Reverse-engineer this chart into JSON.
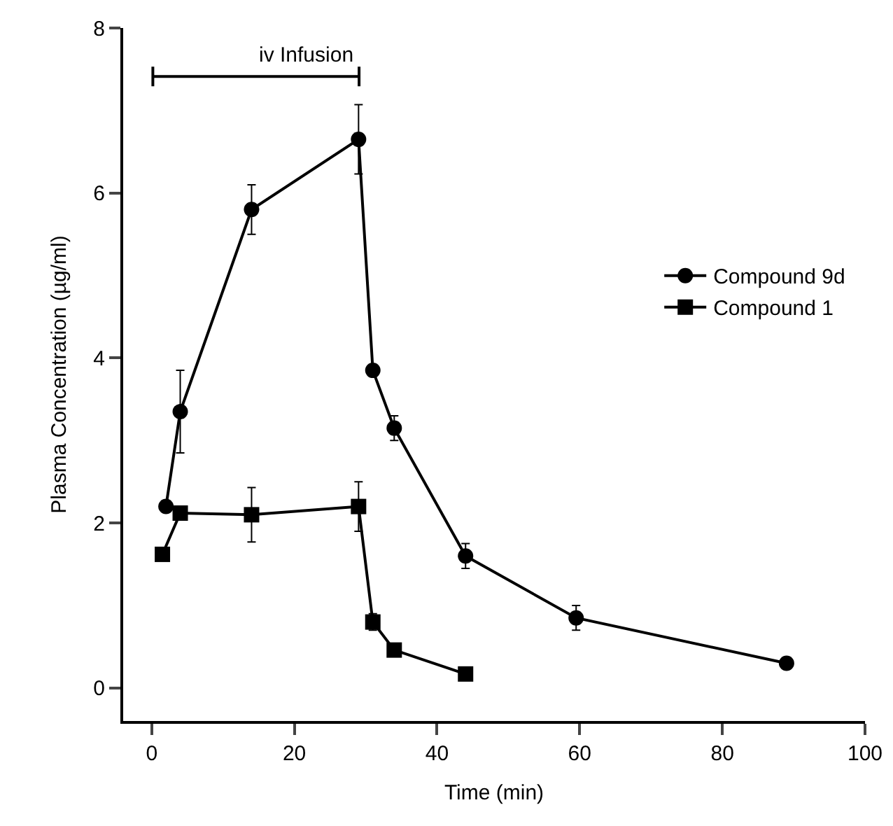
{
  "chart_data": {
    "type": "line",
    "xlabel": "Time (min)",
    "ylabel": "Plasma Concentration (µg/ml)",
    "xlim": [
      -4,
      100
    ],
    "xticks": [
      0,
      20,
      40,
      60,
      80,
      100
    ],
    "ylim": [
      -0.4,
      8
    ],
    "yticks": [
      0,
      2,
      4,
      6,
      8
    ],
    "grid": false,
    "legend": "right",
    "annotations": [
      "iv Infusion"
    ],
    "series": [
      {
        "name": "Compound 9d",
        "color": "#000000",
        "marker": "circle",
        "x": [
          2,
          4,
          14,
          29,
          31,
          34,
          44,
          59.5,
          89
        ],
        "values": [
          2.2,
          3.35,
          5.8,
          6.65,
          3.85,
          3.15,
          1.6,
          0.85,
          0.3
        ],
        "errors": [
          null,
          0.5,
          0.3,
          0.42,
          null,
          0.15,
          0.15,
          0.15,
          null
        ]
      },
      {
        "name": "Compound 1",
        "color": "#000000",
        "marker": "square",
        "x": [
          1.5,
          4,
          14,
          29,
          31,
          34,
          44
        ],
        "values": [
          1.62,
          2.12,
          2.1,
          2.2,
          0.8,
          0.46,
          0.17
        ],
        "errors": [
          null,
          null,
          0.33,
          0.3,
          0.1,
          null,
          null
        ]
      }
    ]
  }
}
